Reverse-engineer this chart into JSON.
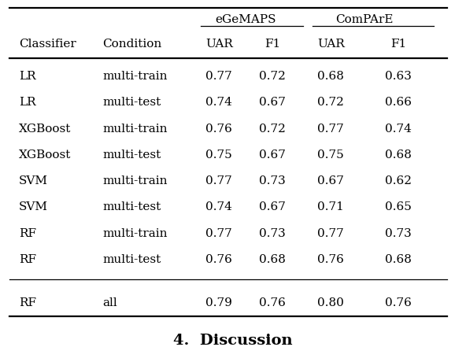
{
  "title_bottom": "4.  Discussion",
  "header_group1": "eGeMAPS",
  "header_group2": "ComPArE",
  "col_headers": [
    "Classifier",
    "Condition",
    "UAR",
    "F1",
    "UAR",
    "F1"
  ],
  "rows": [
    [
      "LR",
      "multi-train",
      "0.77",
      "0.72",
      "0.68",
      "0.63"
    ],
    [
      "LR",
      "multi-test",
      "0.74",
      "0.67",
      "0.72",
      "0.66"
    ],
    [
      "XGBoost",
      "multi-train",
      "0.76",
      "0.72",
      "0.77",
      "0.74"
    ],
    [
      "XGBoost",
      "multi-test",
      "0.75",
      "0.67",
      "0.75",
      "0.68"
    ],
    [
      "SVM",
      "multi-train",
      "0.77",
      "0.73",
      "0.67",
      "0.62"
    ],
    [
      "SVM",
      "multi-test",
      "0.74",
      "0.67",
      "0.71",
      "0.65"
    ],
    [
      "RF",
      "multi-train",
      "0.77",
      "0.73",
      "0.77",
      "0.73"
    ],
    [
      "RF",
      "multi-test",
      "0.76",
      "0.68",
      "0.76",
      "0.68"
    ]
  ],
  "last_row": [
    "RF",
    "all",
    "0.79",
    "0.76",
    "0.80",
    "0.76"
  ],
  "bg_color": "#ffffff",
  "text_color": "#000000",
  "font_size": 11.0,
  "title_font_size": 14
}
